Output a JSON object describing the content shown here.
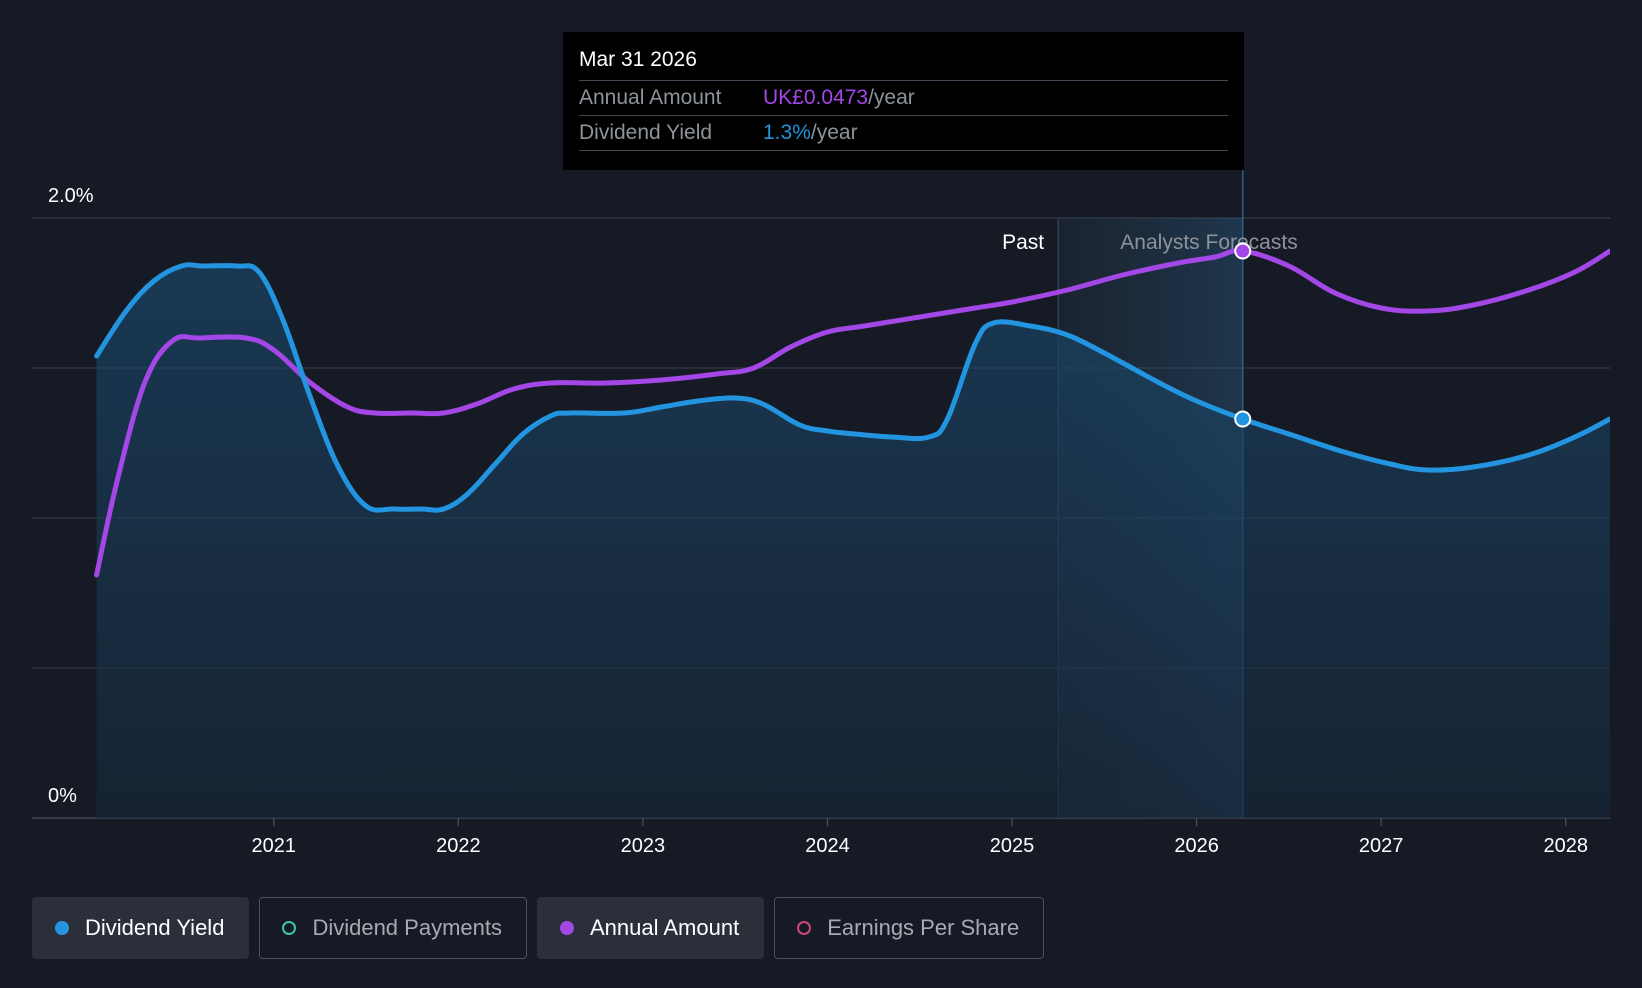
{
  "chart_data": {
    "type": "line",
    "title": "",
    "xlabel": "",
    "ylabel": "",
    "y_tick_labels": [
      "0%",
      "2.0%"
    ],
    "ylim": [
      0,
      2.0
    ],
    "xlim": [
      2019.69,
      2028.24
    ],
    "x_ticks": [
      "2021",
      "2022",
      "2023",
      "2024",
      "2025",
      "2026",
      "2027",
      "2028"
    ],
    "regions": {
      "past_label": "Past",
      "forecast_label": "Analysts Forecasts",
      "past_end": 2025.25,
      "forecast_start": 2025.5
    },
    "grid": true,
    "series": [
      {
        "name": "Dividend Yield",
        "color": "#2394df",
        "points": [
          [
            2020.04,
            1.54
          ],
          [
            2020.2,
            1.69
          ],
          [
            2020.35,
            1.79
          ],
          [
            2020.5,
            1.84
          ],
          [
            2020.62,
            1.84
          ],
          [
            2020.8,
            1.84
          ],
          [
            2020.92,
            1.82
          ],
          [
            2021.05,
            1.66
          ],
          [
            2021.2,
            1.4
          ],
          [
            2021.35,
            1.17
          ],
          [
            2021.5,
            1.04
          ],
          [
            2021.65,
            1.03
          ],
          [
            2021.8,
            1.03
          ],
          [
            2021.92,
            1.03
          ],
          [
            2022.05,
            1.08
          ],
          [
            2022.2,
            1.18
          ],
          [
            2022.35,
            1.28
          ],
          [
            2022.5,
            1.34
          ],
          [
            2022.6,
            1.35
          ],
          [
            2022.9,
            1.35
          ],
          [
            2023.1,
            1.37
          ],
          [
            2023.3,
            1.39
          ],
          [
            2023.5,
            1.4
          ],
          [
            2023.65,
            1.38
          ],
          [
            2023.85,
            1.31
          ],
          [
            2024.0,
            1.29
          ],
          [
            2024.15,
            1.28
          ],
          [
            2024.35,
            1.27
          ],
          [
            2024.55,
            1.27
          ],
          [
            2024.65,
            1.33
          ],
          [
            2024.8,
            1.58
          ],
          [
            2024.9,
            1.65
          ],
          [
            2025.1,
            1.64
          ],
          [
            2025.3,
            1.61
          ],
          [
            2025.5,
            1.55
          ],
          [
            2025.8,
            1.45
          ],
          [
            2026.0,
            1.39
          ],
          [
            2026.25,
            1.33
          ],
          [
            2026.5,
            1.28
          ],
          [
            2026.8,
            1.22
          ],
          [
            2027.05,
            1.18
          ],
          [
            2027.25,
            1.16
          ],
          [
            2027.5,
            1.17
          ],
          [
            2027.8,
            1.21
          ],
          [
            2028.05,
            1.27
          ],
          [
            2028.24,
            1.33
          ]
        ]
      },
      {
        "name": "Annual Amount",
        "color": "#a347e6",
        "points": [
          [
            2020.04,
            0.81
          ],
          [
            2020.15,
            1.12
          ],
          [
            2020.3,
            1.45
          ],
          [
            2020.45,
            1.59
          ],
          [
            2020.6,
            1.6
          ],
          [
            2020.85,
            1.6
          ],
          [
            2021.0,
            1.56
          ],
          [
            2021.2,
            1.45
          ],
          [
            2021.4,
            1.37
          ],
          [
            2021.55,
            1.35
          ],
          [
            2021.75,
            1.35
          ],
          [
            2021.92,
            1.35
          ],
          [
            2022.1,
            1.38
          ],
          [
            2022.3,
            1.43
          ],
          [
            2022.5,
            1.45
          ],
          [
            2022.8,
            1.45
          ],
          [
            2023.1,
            1.46
          ],
          [
            2023.4,
            1.48
          ],
          [
            2023.6,
            1.5
          ],
          [
            2023.8,
            1.57
          ],
          [
            2024.0,
            1.62
          ],
          [
            2024.2,
            1.64
          ],
          [
            2024.5,
            1.67
          ],
          [
            2024.8,
            1.7
          ],
          [
            2025.0,
            1.72
          ],
          [
            2025.3,
            1.76
          ],
          [
            2025.6,
            1.81
          ],
          [
            2025.9,
            1.85
          ],
          [
            2026.1,
            1.87
          ],
          [
            2026.25,
            1.89
          ],
          [
            2026.5,
            1.84
          ],
          [
            2026.75,
            1.75
          ],
          [
            2027.0,
            1.7
          ],
          [
            2027.25,
            1.69
          ],
          [
            2027.5,
            1.71
          ],
          [
            2027.8,
            1.76
          ],
          [
            2028.05,
            1.82
          ],
          [
            2028.24,
            1.89
          ]
        ]
      }
    ],
    "highlight_x": 2026.25
  },
  "tooltip": {
    "date": "Mar 31 2026",
    "rows": [
      {
        "label": "Annual Amount",
        "value": "UK£0.0473",
        "unit": "/year",
        "color": "#a347e6"
      },
      {
        "label": "Dividend Yield",
        "value": "1.3%",
        "unit": "/year",
        "color": "#2394df"
      }
    ]
  },
  "legend": [
    {
      "label": "Dividend Yield",
      "active": true,
      "color": "#2394df",
      "filled": true
    },
    {
      "label": "Dividend Payments",
      "active": false,
      "color": "#3fc2b2",
      "filled": false
    },
    {
      "label": "Annual Amount",
      "active": true,
      "color": "#a347e6",
      "filled": true
    },
    {
      "label": "Earnings Per Share",
      "active": false,
      "color": "#d0487a",
      "filled": false
    }
  ]
}
